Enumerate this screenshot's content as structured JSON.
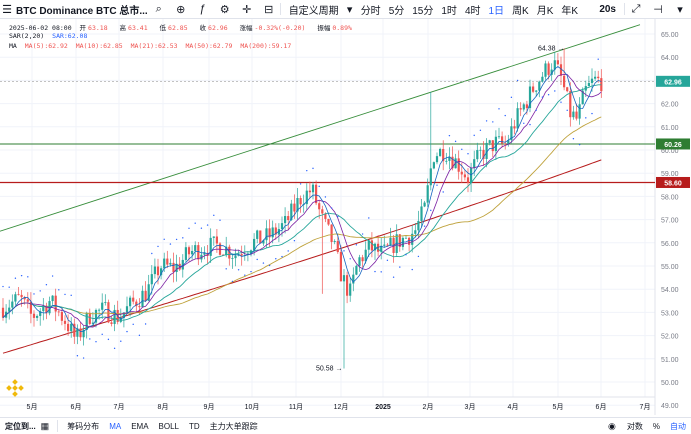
{
  "header": {
    "symbol_title": "BTC Dominance BTC 总市...",
    "custom_period": "自定义周期",
    "timeframes": [
      "分时",
      "5分",
      "15分",
      "1时",
      "4时",
      "1日",
      "周K",
      "月K",
      "年K"
    ],
    "active_timeframe": "1日",
    "timeframe_20s": "20s",
    "icons": [
      "menu-icon",
      "search-icon",
      "compare-icon",
      "indicators-icon",
      "settings-icon",
      "crosshair-icon",
      "ruler-icon",
      "chevron-down-icon",
      "expand-icon",
      "horizontal-line-icon",
      "dropdown-icon"
    ]
  },
  "legend": {
    "ohlc_line": {
      "date": "2025-06-02 08:00",
      "open_label": "开",
      "open": "63.18",
      "high_label": "高",
      "high": "63.41",
      "low_label": "低",
      "low": "62.85",
      "close_label": "收",
      "close": "62.96",
      "change_label": "涨幅",
      "change": "-0.32%(-0.20)",
      "amp_label": "振幅",
      "amp": "0.89%"
    },
    "sar_line": {
      "name": "SAR(2,20)",
      "value": "SAR:62.08"
    },
    "ma_line": {
      "name": "MA",
      "items": [
        "MA(5):62.92",
        "MA(10):62.85",
        "MA(21):62.53",
        "MA(50):62.79",
        "MA(200):59.17"
      ]
    }
  },
  "price_axis": {
    "ticks": [
      "65.00",
      "64.00",
      "63.00",
      "62.00",
      "61.00",
      "60.00",
      "59.00",
      "58.00",
      "57.00",
      "56.00",
      "55.00",
      "54.00",
      "53.00",
      "52.00",
      "51.00",
      "50.00",
      "49.00"
    ],
    "tags": [
      {
        "value": "62.96",
        "color": "#26a69a"
      },
      {
        "value": "60.26",
        "color": "#2e7d32"
      },
      {
        "value": "58.60",
        "color": "#b71c1c"
      }
    ]
  },
  "time_axis": {
    "ticks": [
      "5月",
      "6月",
      "7月",
      "8月",
      "9月",
      "10月",
      "11月",
      "12月",
      "2025",
      "2月",
      "3月",
      "4月",
      "5月",
      "6月",
      "7月"
    ]
  },
  "annotations": {
    "high_label": "64.38",
    "low_label": "50.58"
  },
  "colors": {
    "up": "#26a69a",
    "down": "#ef5350",
    "green_line": "#388e3c",
    "red_line": "#b71c1c",
    "ma200": "#b71c1c",
    "ma50": "#bfa23c",
    "ma21": "#26a69a",
    "ma10": "#7b1fa2",
    "ma5": "#1565c0",
    "sar": "#2962ff",
    "accent": "#2962ff",
    "watermark": "#f0b90b"
  },
  "bottom": {
    "goto_label": "定位到...",
    "tabs": [
      "筹码分布",
      "MA",
      "EMA",
      "BOLL",
      "TD",
      "主力大单跟踪"
    ],
    "active_tab": "MA",
    "right_items": [
      "对数",
      "%",
      "自动"
    ]
  },
  "chart_data": {
    "type": "candlestick",
    "y_range": [
      49.0,
      65.6
    ],
    "x_range": [
      "2024-04",
      "2025-07"
    ],
    "last_close": 62.96,
    "horizontal_levels": [
      60.26,
      58.6
    ],
    "annotated_high": 64.38,
    "annotated_low": 50.58,
    "ohlc_summary": {
      "open": 63.18,
      "high": 63.41,
      "low": 62.85,
      "close": 62.96
    }
  }
}
